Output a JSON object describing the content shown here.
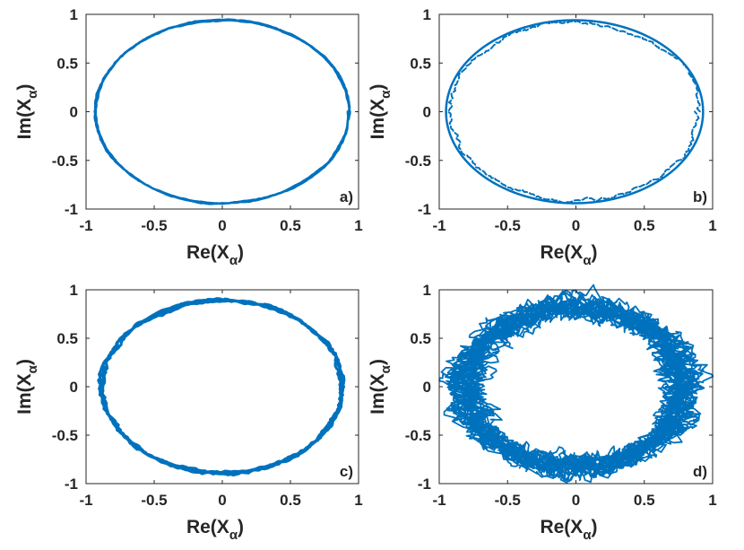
{
  "chart_data": [
    {
      "type": "line",
      "panel": "a)",
      "xlabel_main": "Re(X",
      "xlabel_sub": "α",
      "xlabel_end": ")",
      "ylabel_main": "Im(X",
      "ylabel_sub": "α",
      "ylabel_end": ")",
      "xlim": [
        -1,
        1
      ],
      "ylim": [
        -1,
        1
      ],
      "xticks": [
        -1,
        -0.5,
        0,
        0.5,
        1
      ],
      "yticks": [
        -1,
        -0.5,
        0,
        0.5,
        1
      ],
      "xtick_labels": [
        "-1",
        "-0.5",
        "0",
        "0.5",
        "1"
      ],
      "ytick_labels": [
        "-1",
        "-0.5",
        "0",
        "0.5",
        "1"
      ],
      "grid": false,
      "series": [
        {
          "shape": "ellipse",
          "center": [
            0,
            0
          ],
          "rx": 0.93,
          "ry": 0.94,
          "noise": 0.004,
          "turns": 3,
          "width": 2.5
        }
      ]
    },
    {
      "type": "line",
      "panel": "b)",
      "xlabel_main": "Re(X",
      "xlabel_sub": "α",
      "xlabel_end": ")",
      "ylabel_main": "Im(X",
      "ylabel_sub": "α",
      "ylabel_end": ")",
      "xlim": [
        -1,
        1
      ],
      "ylim": [
        -1,
        1
      ],
      "xticks": [
        -1,
        -0.5,
        0,
        0.5,
        1
      ],
      "yticks": [
        -1,
        -0.5,
        0,
        0.5,
        1
      ],
      "xtick_labels": [
        "-1",
        "-0.5",
        "0",
        "0.5",
        "1"
      ],
      "ytick_labels": [
        "-1",
        "-0.5",
        "0",
        "0.5",
        "1"
      ],
      "grid": false,
      "series": [
        {
          "shape": "ellipse",
          "center": [
            -0.01,
            0
          ],
          "rx": 0.94,
          "ry": 0.94,
          "noise": 0.0,
          "turns": 1,
          "width": 2.5
        },
        {
          "shape": "ellipse",
          "center": [
            -0.01,
            0
          ],
          "rx": 0.91,
          "ry": 0.92,
          "noise": 0.012,
          "turns": 1,
          "width": 2,
          "dashed": true
        }
      ]
    },
    {
      "type": "line",
      "panel": "c)",
      "xlabel_main": "Re(X",
      "xlabel_sub": "α",
      "xlabel_end": ")",
      "ylabel_main": "Im(X",
      "ylabel_sub": "α",
      "ylabel_end": ")",
      "xlim": [
        -1,
        1
      ],
      "ylim": [
        -1,
        1
      ],
      "xticks": [
        -1,
        -0.5,
        0,
        0.5,
        1
      ],
      "yticks": [
        -1,
        -0.5,
        0,
        0.5,
        1
      ],
      "xtick_labels": [
        "-1",
        "-0.5",
        "0",
        "0.5",
        "1"
      ],
      "ytick_labels": [
        "-1",
        "-0.5",
        "0",
        "0.5",
        "1"
      ],
      "grid": false,
      "series": [
        {
          "shape": "ellipse",
          "center": [
            0,
            0
          ],
          "rx": 0.88,
          "ry": 0.89,
          "noise": 0.01,
          "turns": 4,
          "width": 3
        }
      ]
    },
    {
      "type": "line",
      "panel": "d)",
      "xlabel_main": "Re(X",
      "xlabel_sub": "α",
      "xlabel_end": ")",
      "ylabel_main": "Im(X",
      "ylabel_sub": "α",
      "ylabel_end": ")",
      "xlim": [
        -1,
        1
      ],
      "ylim": [
        -1,
        1
      ],
      "xticks": [
        -1,
        -0.5,
        0,
        0.5,
        1
      ],
      "yticks": [
        -1,
        -0.5,
        0,
        0.5,
        1
      ],
      "xtick_labels": [
        "-1",
        "-0.5",
        "0",
        "0.5",
        "1"
      ],
      "ytick_labels": [
        "-1",
        "-0.5",
        "0",
        "0.5",
        "1"
      ],
      "grid": false,
      "series": [
        {
          "shape": "ellipse",
          "center": [
            0,
            0
          ],
          "rx": 0.8,
          "ry": 0.82,
          "noise": 0.06,
          "turns": 24,
          "width": 1.8
        }
      ]
    }
  ],
  "colors": {
    "trace": "#0072BD",
    "axis": "#262626",
    "background": "#ffffff"
  }
}
